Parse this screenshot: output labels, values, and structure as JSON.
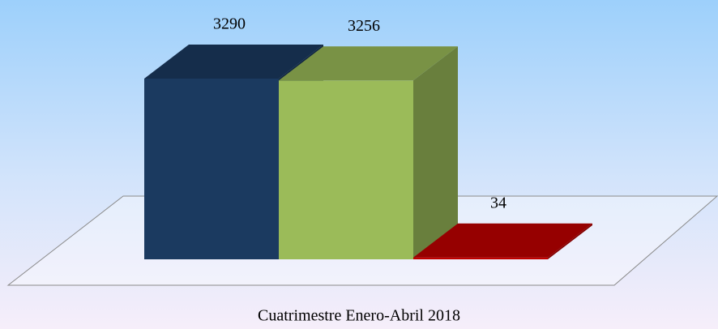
{
  "chart_data": {
    "type": "bar3d",
    "categories": [
      "Cuatrimestre Enero-Abril 2018"
    ],
    "series": [
      {
        "color": "#1b3a60",
        "values": [
          3290
        ]
      },
      {
        "color": "#9bbb59",
        "values": [
          3256
        ]
      },
      {
        "color": "#c00000",
        "values": [
          34
        ]
      }
    ]
  }
}
